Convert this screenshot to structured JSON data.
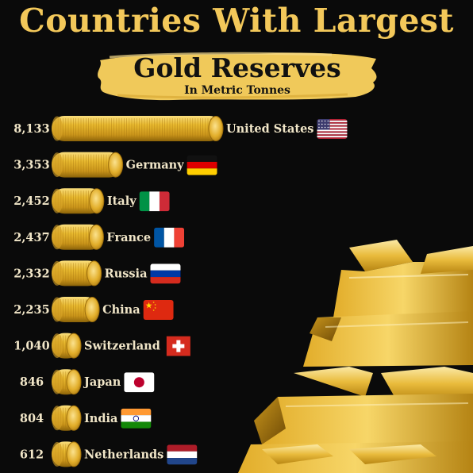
{
  "header": {
    "title": "Countries With Largest",
    "subtitle": "Gold Reserves",
    "unit": "In Metric Tonnes"
  },
  "colors": {
    "background": "#0a0a0a",
    "title": "#f3c85a",
    "brush": "#f0c95a",
    "bar_gold": "#e7b72f",
    "label": "#f1e6c8"
  },
  "chart_data": {
    "type": "bar",
    "orientation": "horizontal",
    "title": "Countries With Largest Gold Reserves",
    "subtitle": "In Metric Tonnes",
    "categories": [
      "United States",
      "Germany",
      "Italy",
      "France",
      "Russia",
      "China",
      "Switzerland",
      "Japan",
      "India",
      "Netherlands"
    ],
    "values": [
      8133,
      3353,
      2452,
      2437,
      2332,
      2235,
      1040,
      846,
      804,
      612
    ],
    "value_labels": [
      "8,133",
      "3,353",
      "2,452",
      "2,437",
      "2,332",
      "2,235",
      "1,040",
      "846",
      "804",
      "612"
    ],
    "flags": [
      "us-flag-icon",
      "germany-flag-icon",
      "italy-flag-icon",
      "france-flag-icon",
      "russia-flag-icon",
      "china-flag-icon",
      "switzerland-flag-icon",
      "japan-flag-icon",
      "india-flag-icon",
      "netherlands-flag-icon"
    ],
    "bar_style": "stacked-gold-coins",
    "decoration": "gold-bars-image"
  }
}
